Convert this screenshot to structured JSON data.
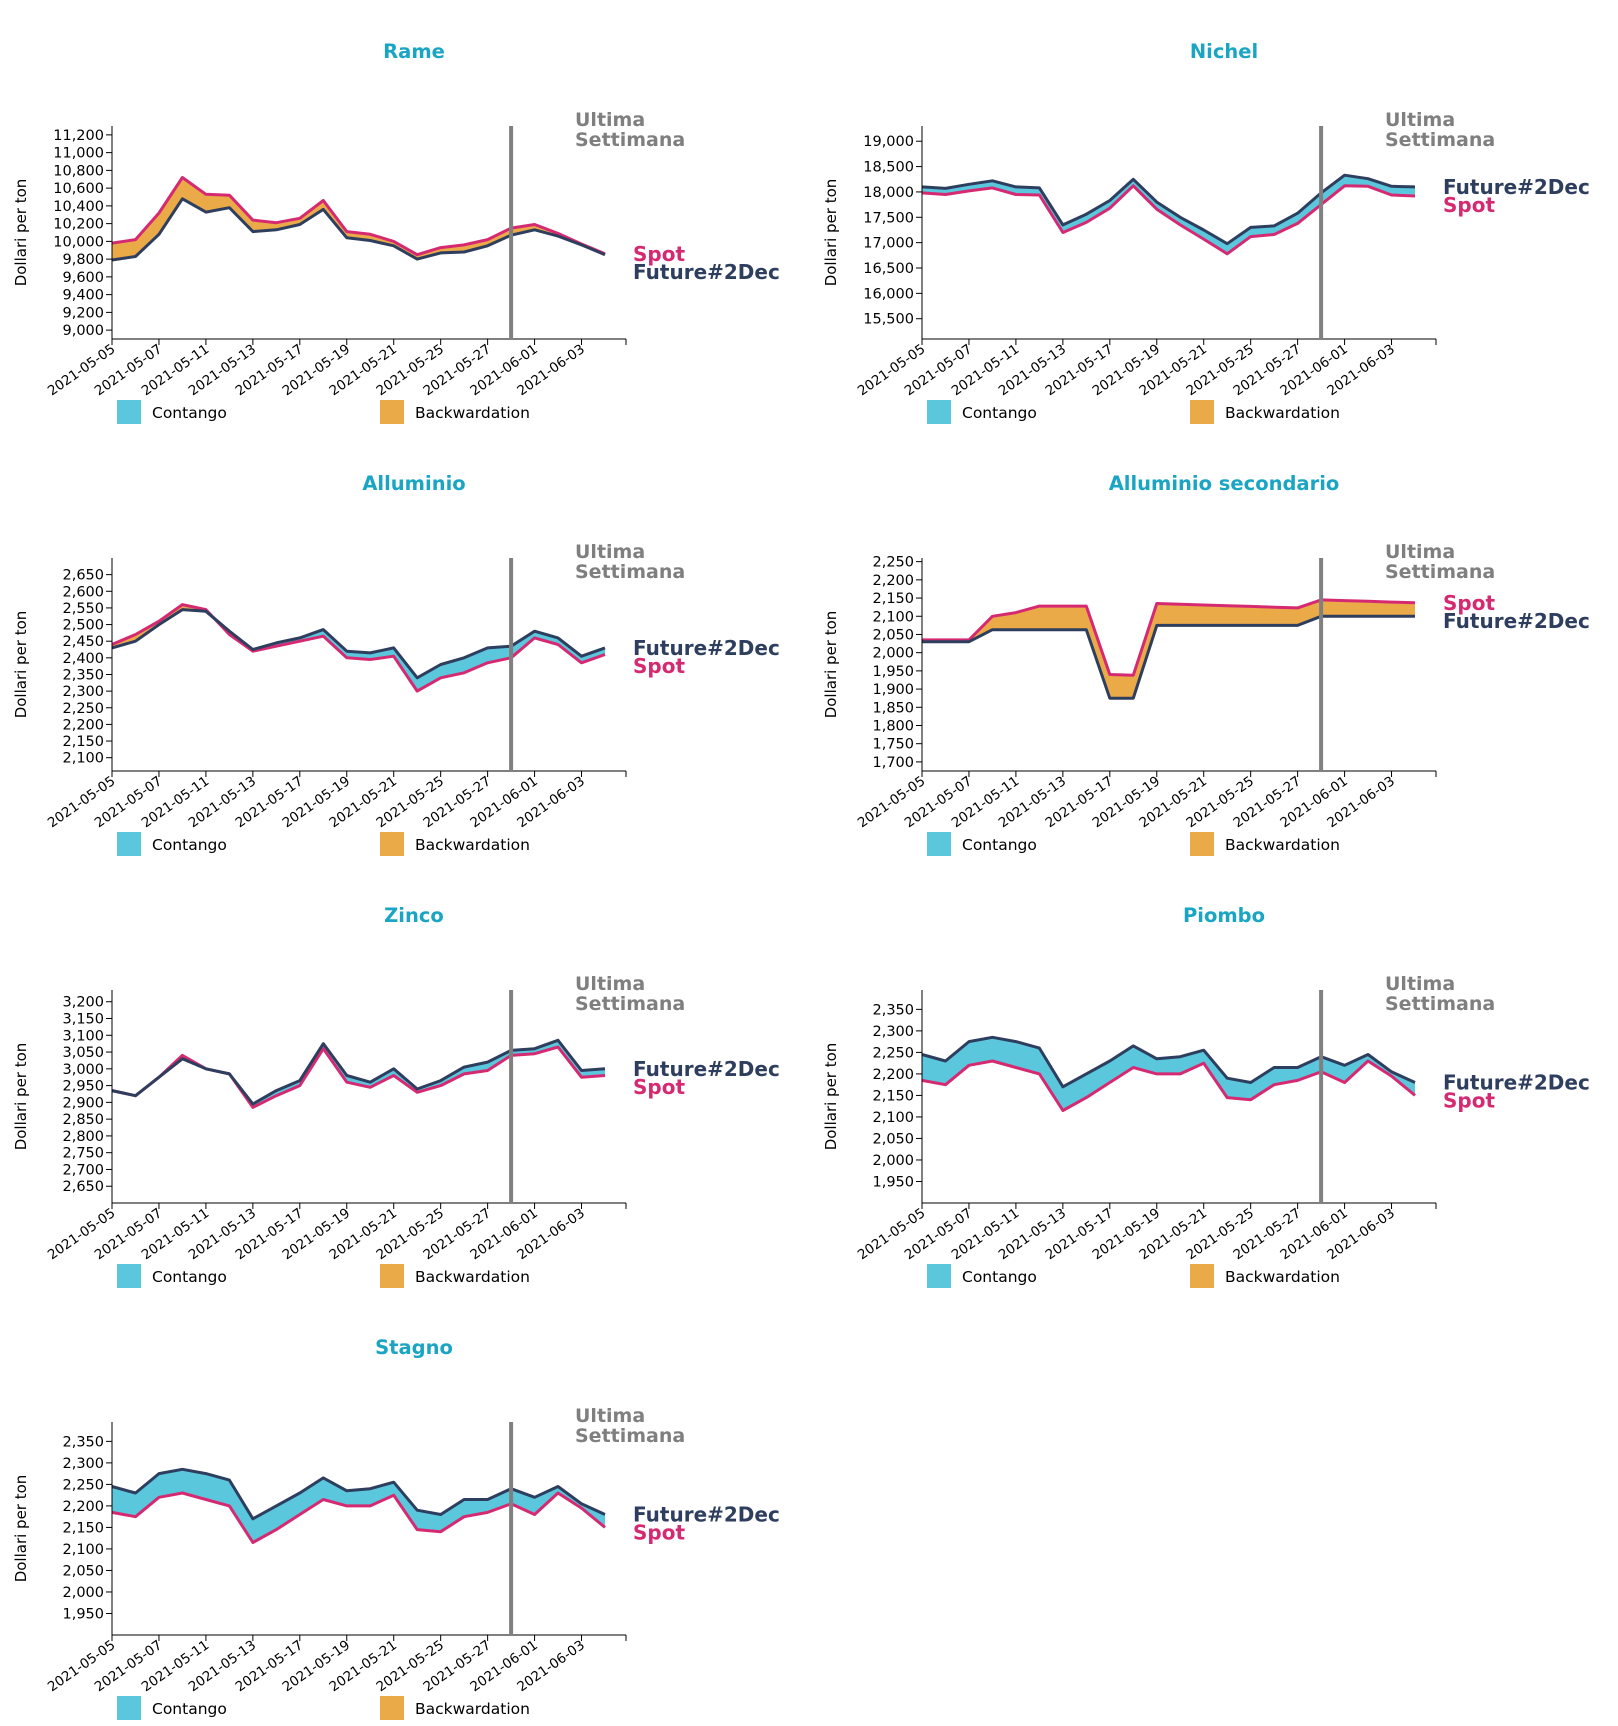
{
  "common": {
    "ylabel": "Dollari per ton",
    "dates": [
      "2021-05-05",
      "2021-05-06",
      "2021-05-07",
      "2021-05-10",
      "2021-05-11",
      "2021-05-12",
      "2021-05-13",
      "2021-05-14",
      "2021-05-17",
      "2021-05-18",
      "2021-05-19",
      "2021-05-20",
      "2021-05-21",
      "2021-05-24",
      "2021-05-25",
      "2021-05-26",
      "2021-05-27",
      "2021-05-28",
      "2021-06-01",
      "2021-06-02",
      "2021-06-03",
      "2021-06-04"
    ],
    "xticks": [
      "2021-05-05",
      "2021-05-07",
      "2021-05-11",
      "2021-05-13",
      "2021-05-17",
      "2021-05-19",
      "2021-05-21",
      "2021-05-25",
      "2021-05-27",
      "2021-06-01",
      "2021-06-03"
    ],
    "last_week_lines": [
      "Ultima",
      "Settimana"
    ],
    "last_week_date": "2021-05-28",
    "future_label": "Future#2Dec",
    "spot_label": "Spot",
    "legend_contango": "Contango",
    "legend_backwardation": "Backwardation",
    "colors": {
      "title": "#1aa5c4",
      "future": "#2e3e5f",
      "spot": "#d52a72",
      "contango": "#5ac7dd",
      "backwardation": "#ebaa48",
      "week_line": "#808080",
      "week_text": "#7f7f7f"
    }
  },
  "chart_data": [
    {
      "type": "area",
      "title": "Rame",
      "ylim": [
        8900,
        11300
      ],
      "yticks": [
        "9,000",
        "9,200",
        "9,400",
        "9,600",
        "9,800",
        "10,000",
        "10,200",
        "10,400",
        "10,600",
        "10,800",
        "11,000",
        "11,200"
      ],
      "yvals": [
        9000,
        9200,
        9400,
        9600,
        9800,
        10000,
        10200,
        10400,
        10600,
        10800,
        11000,
        11200
      ],
      "series": [
        {
          "name": "Future#2Dec",
          "values": [
            9790,
            9830,
            10080,
            10480,
            10330,
            10380,
            10110,
            10130,
            10190,
            10360,
            10040,
            10010,
            9950,
            9800,
            9870,
            9880,
            9950,
            10070,
            10130,
            10060,
            9960,
            9850
          ]
        },
        {
          "name": "Spot",
          "values": [
            9980,
            10020,
            10320,
            10720,
            10530,
            10520,
            10240,
            10210,
            10260,
            10460,
            10110,
            10080,
            10000,
            9850,
            9930,
            9960,
            10020,
            10150,
            10190,
            10090,
            9970,
            9860
          ]
        }
      ]
    },
    {
      "type": "area",
      "title": "Nichel",
      "ylim": [
        15100,
        19300
      ],
      "yticks": [
        "15,500",
        "16,000",
        "16,500",
        "17,000",
        "17,500",
        "18,000",
        "18,500",
        "19,000"
      ],
      "yvals": [
        15500,
        16000,
        16500,
        17000,
        17500,
        18000,
        18500,
        19000
      ],
      "series": [
        {
          "name": "Future#2Dec",
          "values": [
            18100,
            18070,
            18150,
            18220,
            18100,
            18080,
            17350,
            17560,
            17830,
            18250,
            17800,
            17500,
            17250,
            16980,
            17300,
            17330,
            17580,
            17980,
            18330,
            18260,
            18110,
            18100
          ]
        },
        {
          "name": "Spot",
          "values": [
            17980,
            17950,
            18020,
            18080,
            17950,
            17940,
            17200,
            17400,
            17680,
            18120,
            17660,
            17350,
            17070,
            16780,
            17120,
            17160,
            17380,
            17750,
            18120,
            18110,
            17940,
            17920
          ]
        }
      ]
    },
    {
      "type": "area",
      "title": "Alluminio",
      "ylim": [
        2060,
        2700
      ],
      "yticks": [
        "2,100",
        "2,150",
        "2,200",
        "2,250",
        "2,300",
        "2,350",
        "2,400",
        "2,450",
        "2,500",
        "2,550",
        "2,600",
        "2,650"
      ],
      "yvals": [
        2100,
        2150,
        2200,
        2250,
        2300,
        2350,
        2400,
        2450,
        2500,
        2550,
        2600,
        2650
      ],
      "series": [
        {
          "name": "Future#2Dec",
          "values": [
            2430,
            2450,
            2500,
            2545,
            2540,
            2480,
            2425,
            2445,
            2460,
            2485,
            2420,
            2415,
            2430,
            2340,
            2380,
            2400,
            2430,
            2435,
            2480,
            2460,
            2405,
            2430
          ]
        },
        {
          "name": "Spot",
          "values": [
            2440,
            2470,
            2510,
            2560,
            2545,
            2470,
            2420,
            2435,
            2450,
            2465,
            2400,
            2395,
            2405,
            2300,
            2340,
            2355,
            2385,
            2400,
            2460,
            2440,
            2385,
            2410
          ]
        }
      ]
    },
    {
      "type": "area",
      "title": "Alluminio secondario",
      "ylim": [
        1675,
        2260
      ],
      "yticks": [
        "1,700",
        "1,750",
        "1,800",
        "1,850",
        "1,900",
        "1,950",
        "2,000",
        "2,050",
        "2,100",
        "2,150",
        "2,200",
        "2,250"
      ],
      "yvals": [
        1700,
        1750,
        1800,
        1850,
        1900,
        1950,
        2000,
        2050,
        2100,
        2150,
        2200,
        2250
      ],
      "series": [
        {
          "name": "Future#2Dec",
          "values": [
            2030,
            2030,
            2030,
            2063,
            2063,
            2063,
            2063,
            2063,
            1875,
            1875,
            2075,
            2075,
            2075,
            2075,
            2075,
            2075,
            2075,
            2100,
            2100,
            2100,
            2100,
            2100
          ]
        },
        {
          "name": "Spot",
          "values": [
            2035,
            2035,
            2035,
            2100,
            2110,
            2128,
            2128,
            2128,
            1940,
            1938,
            2135,
            2133,
            2131,
            2129,
            2127,
            2125,
            2123,
            2145,
            2143,
            2141,
            2139,
            2137
          ]
        }
      ]
    },
    {
      "type": "area",
      "title": "Zinco",
      "ylim": [
        2600,
        3235
      ],
      "yticks": [
        "2,650",
        "2,700",
        "2,750",
        "2,800",
        "2,850",
        "2,900",
        "2,950",
        "3,000",
        "3,050",
        "3,100",
        "3,150",
        "3,200"
      ],
      "yvals": [
        2650,
        2700,
        2750,
        2800,
        2850,
        2900,
        2950,
        3000,
        3050,
        3100,
        3150,
        3200
      ],
      "series": [
        {
          "name": "Future#2Dec",
          "values": [
            2935,
            2920,
            2975,
            3030,
            3000,
            2985,
            2895,
            2935,
            2965,
            3075,
            2980,
            2960,
            3000,
            2940,
            2965,
            3005,
            3020,
            3055,
            3060,
            3085,
            2995,
            3000
          ]
        },
        {
          "name": "Spot",
          "values": [
            2935,
            2920,
            2975,
            3040,
            3000,
            2985,
            2885,
            2920,
            2950,
            3060,
            2960,
            2945,
            2980,
            2930,
            2950,
            2985,
            2995,
            3040,
            3045,
            3065,
            2975,
            2980
          ]
        }
      ]
    },
    {
      "type": "area",
      "title": "Piombo",
      "ylim": [
        1900,
        2395
      ],
      "yticks": [
        "1,950",
        "2,000",
        "2,050",
        "2,100",
        "2,150",
        "2,200",
        "2,250",
        "2,300",
        "2,350"
      ],
      "yvals": [
        1950,
        2000,
        2050,
        2100,
        2150,
        2200,
        2250,
        2300,
        2350
      ],
      "series": [
        {
          "name": "Future#2Dec",
          "values": [
            2245,
            2230,
            2275,
            2285,
            2275,
            2260,
            2170,
            2200,
            2230,
            2265,
            2235,
            2240,
            2255,
            2190,
            2180,
            2215,
            2215,
            2240,
            2220,
            2245,
            2205,
            2180
          ]
        },
        {
          "name": "Spot",
          "values": [
            2185,
            2175,
            2220,
            2230,
            2215,
            2200,
            2115,
            2145,
            2180,
            2215,
            2200,
            2200,
            2225,
            2145,
            2140,
            2175,
            2185,
            2205,
            2180,
            2230,
            2195,
            2150
          ]
        }
      ]
    },
    {
      "type": "area",
      "title": "Stagno",
      "ylim": [
        1900,
        2395
      ],
      "yticks": [
        "1,950",
        "2,000",
        "2,050",
        "2,100",
        "2,150",
        "2,200",
        "2,250",
        "2,300",
        "2,350"
      ],
      "yvals": [
        1950,
        2000,
        2050,
        2100,
        2150,
        2200,
        2250,
        2300,
        2350
      ],
      "series": [
        {
          "name": "Future#2Dec",
          "values": [
            2245,
            2230,
            2275,
            2285,
            2275,
            2260,
            2170,
            2200,
            2230,
            2265,
            2235,
            2240,
            2255,
            2190,
            2180,
            2215,
            2215,
            2240,
            2220,
            2245,
            2205,
            2180
          ]
        },
        {
          "name": "Spot",
          "values": [
            2185,
            2175,
            2220,
            2230,
            2215,
            2200,
            2115,
            2145,
            2180,
            2215,
            2200,
            2200,
            2225,
            2145,
            2140,
            2175,
            2185,
            2205,
            2180,
            2230,
            2195,
            2150
          ]
        }
      ]
    }
  ]
}
